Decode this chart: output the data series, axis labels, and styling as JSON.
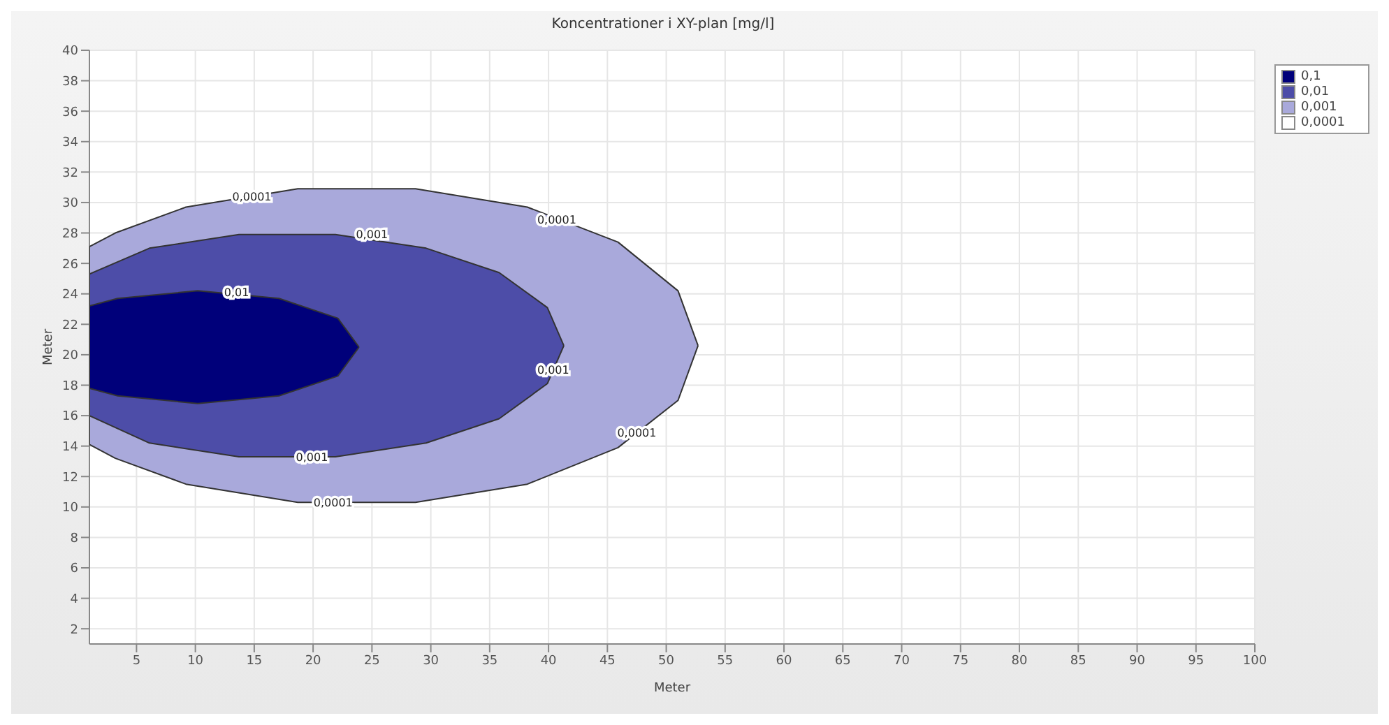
{
  "chart_data": {
    "type": "area",
    "title": "Koncentrationer i XY-plan [mg/l]",
    "xlabel": "Meter",
    "ylabel": "Meter",
    "xlim": [
      1,
      100
    ],
    "ylim": [
      1,
      40
    ],
    "xticks": [
      5,
      10,
      15,
      20,
      25,
      30,
      35,
      40,
      45,
      50,
      55,
      60,
      65,
      70,
      75,
      80,
      85,
      90,
      95,
      100
    ],
    "yticks": [
      2,
      4,
      6,
      8,
      10,
      12,
      14,
      16,
      18,
      20,
      22,
      24,
      26,
      28,
      30,
      32,
      34,
      36,
      38,
      40
    ],
    "grid": true,
    "legend": "top right",
    "series": [
      {
        "name": "0,1",
        "color": "#00007a",
        "x": [
          23.9,
          22.1,
          17.1,
          10.2,
          3.4,
          1,
          1,
          3.4,
          10.2,
          17.1,
          22.1,
          23.9
        ],
        "values": [
          20.5,
          22.4,
          23.7,
          24.2,
          23.7,
          23.2,
          17.8,
          17.3,
          16.8,
          17.3,
          18.6,
          20.5
        ]
      },
      {
        "name": "0,01",
        "color": "#4d4da8",
        "x": [
          41.3,
          39.9,
          35.8,
          29.6,
          21.9,
          13.7,
          6.1,
          1,
          1,
          6.1,
          13.7,
          21.9,
          29.6,
          35.8,
          39.9,
          41.3
        ],
        "values": [
          20.6,
          23.1,
          25.4,
          27.0,
          27.9,
          27.9,
          27.0,
          25.3,
          16.0,
          14.2,
          13.3,
          13.3,
          14.2,
          15.8,
          18.1,
          20.6
        ]
      },
      {
        "name": "0,001",
        "color": "#a9a9db",
        "x": [
          52.7,
          51.0,
          45.9,
          38.2,
          28.7,
          18.7,
          9.2,
          3.2,
          1,
          1,
          3.2,
          9.2,
          18.7,
          28.7,
          38.2,
          45.9,
          51.0,
          52.7
        ],
        "values": [
          20.6,
          24.2,
          27.4,
          29.7,
          30.9,
          30.9,
          29.7,
          28.0,
          27.1,
          14.1,
          13.2,
          11.5,
          10.3,
          10.3,
          11.5,
          13.9,
          17.0,
          20.6
        ]
      },
      {
        "name": "0,0001",
        "color": "#ffffff"
      }
    ],
    "annotations": [
      {
        "text": "0,0001",
        "x": 14.8,
        "y": 30.4
      },
      {
        "text": "0,0001",
        "x": 40.7,
        "y": 28.9
      },
      {
        "text": "0,0001",
        "x": 47.5,
        "y": 14.9
      },
      {
        "text": "0,0001",
        "x": 21.7,
        "y": 10.3
      },
      {
        "text": "0,001",
        "x": 25,
        "y": 27.9
      },
      {
        "text": "0,001",
        "x": 40.4,
        "y": 19.0
      },
      {
        "text": "0,001",
        "x": 19.9,
        "y": 13.3
      },
      {
        "text": "0,01",
        "x": 13.5,
        "y": 24.1
      }
    ]
  }
}
